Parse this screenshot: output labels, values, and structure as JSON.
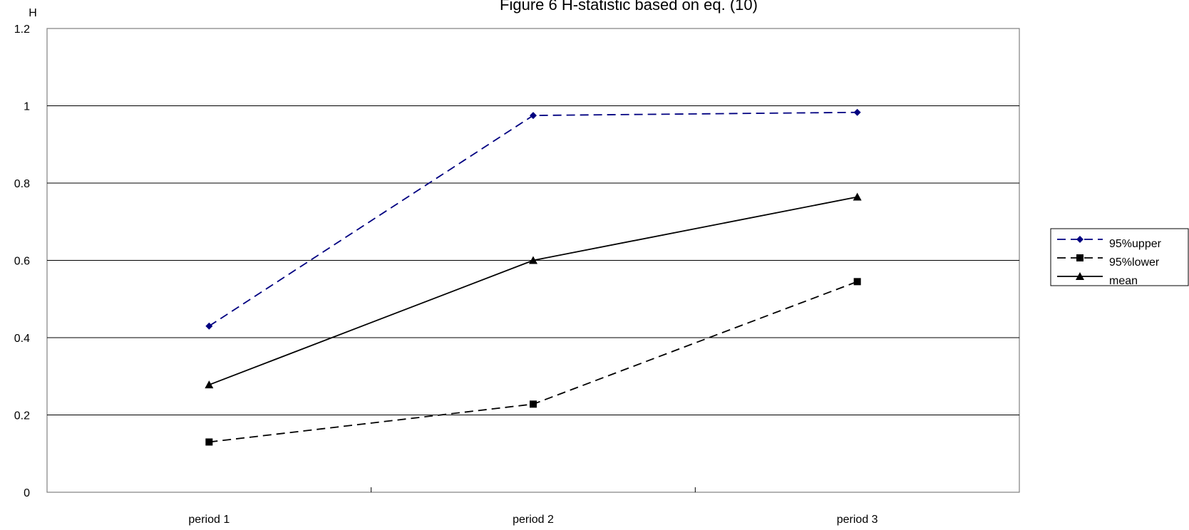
{
  "chart_data": {
    "type": "line",
    "title": "Figure 6 H-statistic based on eq. (10)",
    "ylabel": "H",
    "xlabel": "",
    "categories": [
      "period 1",
      "period 2",
      "period 3"
    ],
    "ylim": [
      0,
      1.2
    ],
    "yticks": [
      "0",
      "0.2",
      "0.4",
      "0.6",
      "0.8",
      "1",
      "1.2"
    ],
    "grid": true,
    "legend_position": "right",
    "series": [
      {
        "name": "95%upper",
        "values": [
          0.43,
          0.975,
          0.983
        ],
        "color": "#000080",
        "dash": "dashed",
        "marker": "diamond"
      },
      {
        "name": "95%lower",
        "values": [
          0.13,
          0.228,
          0.545
        ],
        "color": "#000000",
        "dash": "dashed",
        "marker": "square"
      },
      {
        "name": "mean",
        "values": [
          0.278,
          0.6,
          0.764
        ],
        "color": "#000000",
        "dash": "solid",
        "marker": "triangle"
      }
    ]
  }
}
